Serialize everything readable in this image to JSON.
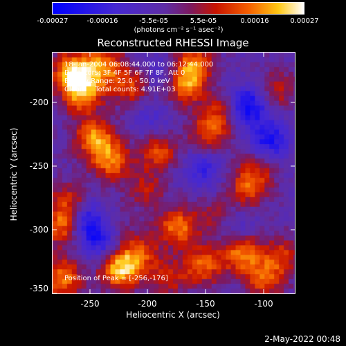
{
  "colorbar": {
    "ticks": [
      "-0.00027",
      "-0.00016",
      "-5.5e-05",
      "5.5e-05",
      "0.00016",
      "0.00027"
    ],
    "unit": "(photons cm⁻² s⁻¹ asec⁻²)",
    "vmin": -0.00027,
    "vmax": 0.00027
  },
  "info": {
    "time_range": "18-Jan-2004 06:08:44.000 to 06:12:44.000",
    "detectors": "Detectors: 3F 4F 5F 6F 7F 8F, Att 0",
    "energy": "Energy Range: 25.0 - 50.0 keV",
    "clean": "Clean     Total counts: 4.91E+03",
    "peak": "Position of Peak = [-256,-176]"
  },
  "chart_data": {
    "type": "heatmap",
    "title": "Reconstructed RHESSI Image",
    "xlabel": "Heliocentric X (arcsec)",
    "ylabel": "Heliocentric Y (arcsec)",
    "xlim": [
      -278,
      -88
    ],
    "ylim": [
      -352,
      -163
    ],
    "xticks": [
      "-250",
      "-200",
      "-150",
      "-100"
    ],
    "yticks": [
      "-200",
      "-250",
      "-300",
      "-350"
    ],
    "peak_position": [
      -256,
      -176
    ],
    "blobs": [
      {
        "x": -262,
        "y": -178,
        "value": 0.00026
      },
      {
        "x": -255,
        "y": -195,
        "value": 0.00022
      },
      {
        "x": -238,
        "y": -174,
        "value": 0.0002
      },
      {
        "x": -217,
        "y": -190,
        "value": 0.00015
      },
      {
        "x": -175,
        "y": -188,
        "value": 0.00021
      },
      {
        "x": -168,
        "y": -172,
        "value": 0.00018
      },
      {
        "x": -245,
        "y": -230,
        "value": 0.00022
      },
      {
        "x": -232,
        "y": -248,
        "value": 0.00019
      },
      {
        "x": -195,
        "y": -240,
        "value": 0.00016
      },
      {
        "x": -270,
        "y": -300,
        "value": 0.00019
      },
      {
        "x": -265,
        "y": -280,
        "value": 0.00014
      },
      {
        "x": -225,
        "y": -333,
        "value": 0.00026
      },
      {
        "x": -210,
        "y": -320,
        "value": 0.00015
      },
      {
        "x": -180,
        "y": -300,
        "value": 0.0002
      },
      {
        "x": -188,
        "y": -340,
        "value": 0.00012
      },
      {
        "x": -160,
        "y": -330,
        "value": 0.00018
      },
      {
        "x": -130,
        "y": -320,
        "value": 0.00021
      },
      {
        "x": -112,
        "y": -340,
        "value": 0.00017
      },
      {
        "x": -98,
        "y": -322,
        "value": 0.00013
      },
      {
        "x": -155,
        "y": -225,
        "value": 0.00016
      },
      {
        "x": -145,
        "y": -208,
        "value": 0.00011
      },
      {
        "x": -125,
        "y": -270,
        "value": 0.00014
      },
      {
        "x": -118,
        "y": -255,
        "value": 0.00011
      },
      {
        "x": -102,
        "y": -192,
        "value": 0.00012
      },
      {
        "x": -235,
        "y": -300,
        "value": 0.0001
      },
      {
        "x": -205,
        "y": -270,
        "value": 0.00011
      },
      {
        "x": -270,
        "y": -340,
        "value": 0.0002
      },
      {
        "x": -150,
        "y": -292,
        "value": 0.0001
      },
      {
        "x": -250,
        "y": -295,
        "value": -0.0002
      },
      {
        "x": -240,
        "y": -310,
        "value": -0.00018
      },
      {
        "x": -125,
        "y": -205,
        "value": -0.00022
      },
      {
        "x": -108,
        "y": -232,
        "value": -0.00018
      },
      {
        "x": -190,
        "y": -180,
        "value": -0.0001
      },
      {
        "x": -160,
        "y": -255,
        "value": -0.00012
      },
      {
        "x": -200,
        "y": -215,
        "value": -8e-05
      },
      {
        "x": -135,
        "y": -300,
        "value": -9e-05
      }
    ]
  },
  "footer": {
    "date": "2-May-2022 00:48"
  }
}
